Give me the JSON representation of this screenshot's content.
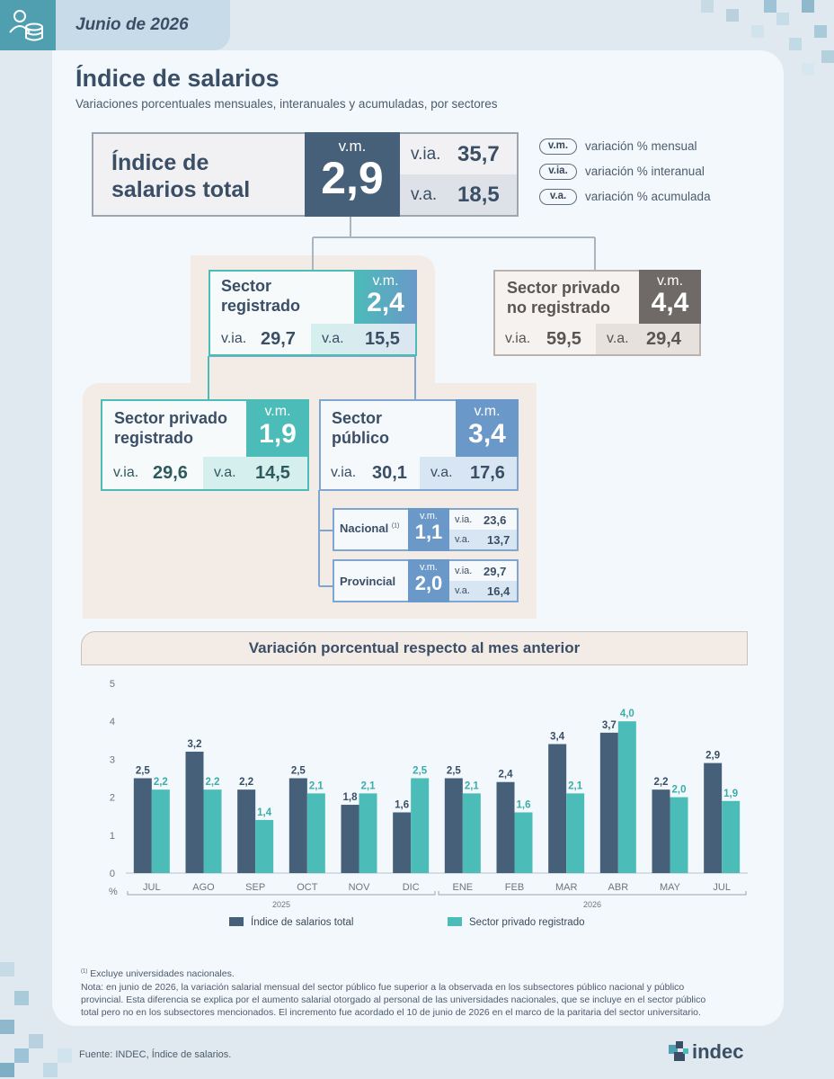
{
  "header": {
    "date": "Junio de 2026",
    "icon": "people-coins-icon"
  },
  "title": "Índice de salarios",
  "subtitle": "Variaciones porcentuales mensuales, interanuales y acumuladas, por sectores",
  "total": {
    "name_line1": "Índice de",
    "name_line2": "salarios total",
    "vm_label": "v.m.",
    "vm": "2,9",
    "via_label": "v.ia.",
    "via": "35,7",
    "va_label": "v.a.",
    "va": "18,5"
  },
  "legend": [
    {
      "abbr": "v.m.",
      "text": "variación % mensual"
    },
    {
      "abbr": "v.ia.",
      "text": "variación % interanual"
    },
    {
      "abbr": "v.a.",
      "text": "variación % acumulada"
    }
  ],
  "registrado": {
    "name_line1": "Sector",
    "name_line2": "registrado",
    "vm_label": "v.m.",
    "vm": "2,4",
    "via_label": "v.ia.",
    "via": "29,7",
    "va_label": "v.a.",
    "va": "15,5"
  },
  "no_registrado": {
    "name_line1": "Sector privado",
    "name_line2": "no registrado",
    "vm_label": "v.m.",
    "vm": "4,4",
    "via_label": "v.ia.",
    "via": "59,5",
    "va_label": "v.a.",
    "va": "29,4"
  },
  "privado_registrado": {
    "name_line1": "Sector privado",
    "name_line2": "registrado",
    "vm_label": "v.m.",
    "vm": "1,9",
    "via_label": "v.ia.",
    "via": "29,6",
    "va_label": "v.a.",
    "va": "14,5"
  },
  "publico": {
    "name_line1": "Sector",
    "name_line2": "público",
    "vm_label": "v.m.",
    "vm": "3,4",
    "via_label": "v.ia.",
    "via": "30,1",
    "va_label": "v.a.",
    "va": "17,6"
  },
  "nacional": {
    "name": "Nacional",
    "note": "(1)",
    "vm_label": "v.m.",
    "vm": "1,1",
    "via_label": "v.ia.",
    "via": "23,6",
    "va_label": "v.a.",
    "va": "13,7"
  },
  "provincial": {
    "name": "Provincial",
    "vm_label": "v.m.",
    "vm": "2,0",
    "via_label": "v.ia.",
    "via": "29,7",
    "va_label": "v.a.",
    "va": "16,4"
  },
  "colors": {
    "total": "#47607a",
    "registrado": "#4bbcb8",
    "no_registrado": "#6f6a67",
    "publico": "#6a98c9",
    "text_dark": "#3a4e66"
  },
  "chart_data": {
    "type": "bar",
    "title": "Variación porcentual respecto al mes anterior",
    "ylabel": "%",
    "ylim": [
      0,
      5
    ],
    "yticks": [
      "0",
      "1",
      "2",
      "3",
      "4",
      "5"
    ],
    "categories": [
      "JUL",
      "AGO",
      "SEP",
      "OCT",
      "NOV",
      "DIC",
      "ENE",
      "FEB",
      "MAR",
      "ABR",
      "MAY",
      "JUL"
    ],
    "year_groups": [
      {
        "label": "2025",
        "from": 0,
        "to": 5
      },
      {
        "label": "2026",
        "from": 6,
        "to": 11
      }
    ],
    "series": [
      {
        "name": "Índice de salarios total",
        "color": "#47607a",
        "values": [
          2.5,
          3.2,
          2.2,
          2.5,
          1.8,
          1.6,
          2.5,
          2.4,
          3.4,
          3.7,
          2.2,
          2.9
        ],
        "labels": [
          "2,5",
          "3,2",
          "2,2",
          "2,5",
          "1,8",
          "1,6",
          "2,5",
          "2,4",
          "3,4",
          "3,7",
          "2,2",
          "2,9"
        ]
      },
      {
        "name": "Sector privado registrado",
        "color": "#4bbcb8",
        "values": [
          2.2,
          2.2,
          1.4,
          2.1,
          2.1,
          2.5,
          2.1,
          1.6,
          2.1,
          4.0,
          2.0,
          1.9
        ],
        "labels": [
          "2,2",
          "2,2",
          "1,4",
          "2,1",
          "2,1",
          "2,5",
          "2,1",
          "1,6",
          "2,1",
          "4,0",
          "2,0",
          "1,9"
        ]
      }
    ],
    "legend_position": "bottom"
  },
  "footnotes": {
    "note1_mark": "(1)",
    "note1": "Excluye universidades nacionales.",
    "note_line1": "Nota: en junio de 2026, la variación salarial mensual del sector público fue superior a la observada en los subsectores público nacional y público",
    "note_line2": "provincial. Esta diferencia se explica por el aumento salarial otorgado al personal de las universidades nacionales, que se incluye en el sector público",
    "note_line3": "total pero no en los subsectores mencionados. El incremento fue acordado el 10 de junio de 2026 en el marco de la paritaria del sector universitario."
  },
  "source": "Fuente: INDEC, Índice de salarios.",
  "logo": "indec"
}
